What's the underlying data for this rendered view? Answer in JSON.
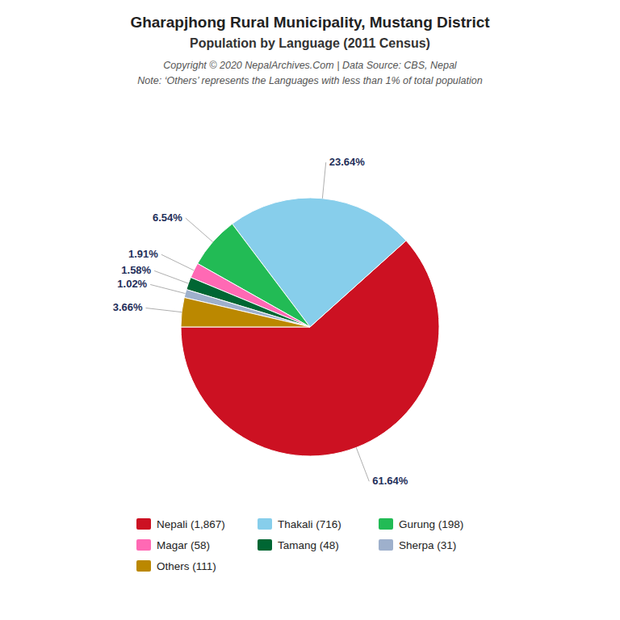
{
  "chart_data": {
    "type": "pie",
    "title": "Gharapjhong Rural Municipality, Mustang District",
    "subtitle": "Population by Language (2011 Census)",
    "annotations": [
      "Copyright © 2020 NepalArchives.Com | Data Source: CBS, Nepal",
      "Note: ‘Others’ represents the Languages with less than 1% of total population"
    ],
    "categories": [
      "Nepali (1,867)",
      "Thakali (716)",
      "Gurung (198)",
      "Magar (58)",
      "Tamang (48)",
      "Sherpa (31)",
      "Others (111)"
    ],
    "values": [
      61.64,
      23.64,
      6.54,
      1.91,
      1.58,
      1.02,
      3.66
    ],
    "value_labels": [
      "61.64%",
      "23.64%",
      "6.54%",
      "1.91%",
      "1.58%",
      "1.02%",
      "3.66%"
    ],
    "colors": [
      "#CC1122",
      "#87CEEB",
      "#22BB55",
      "#FF69B4",
      "#006633",
      "#9EB0CC",
      "#BB8800"
    ],
    "data_labels": true,
    "legend": "bottom"
  }
}
